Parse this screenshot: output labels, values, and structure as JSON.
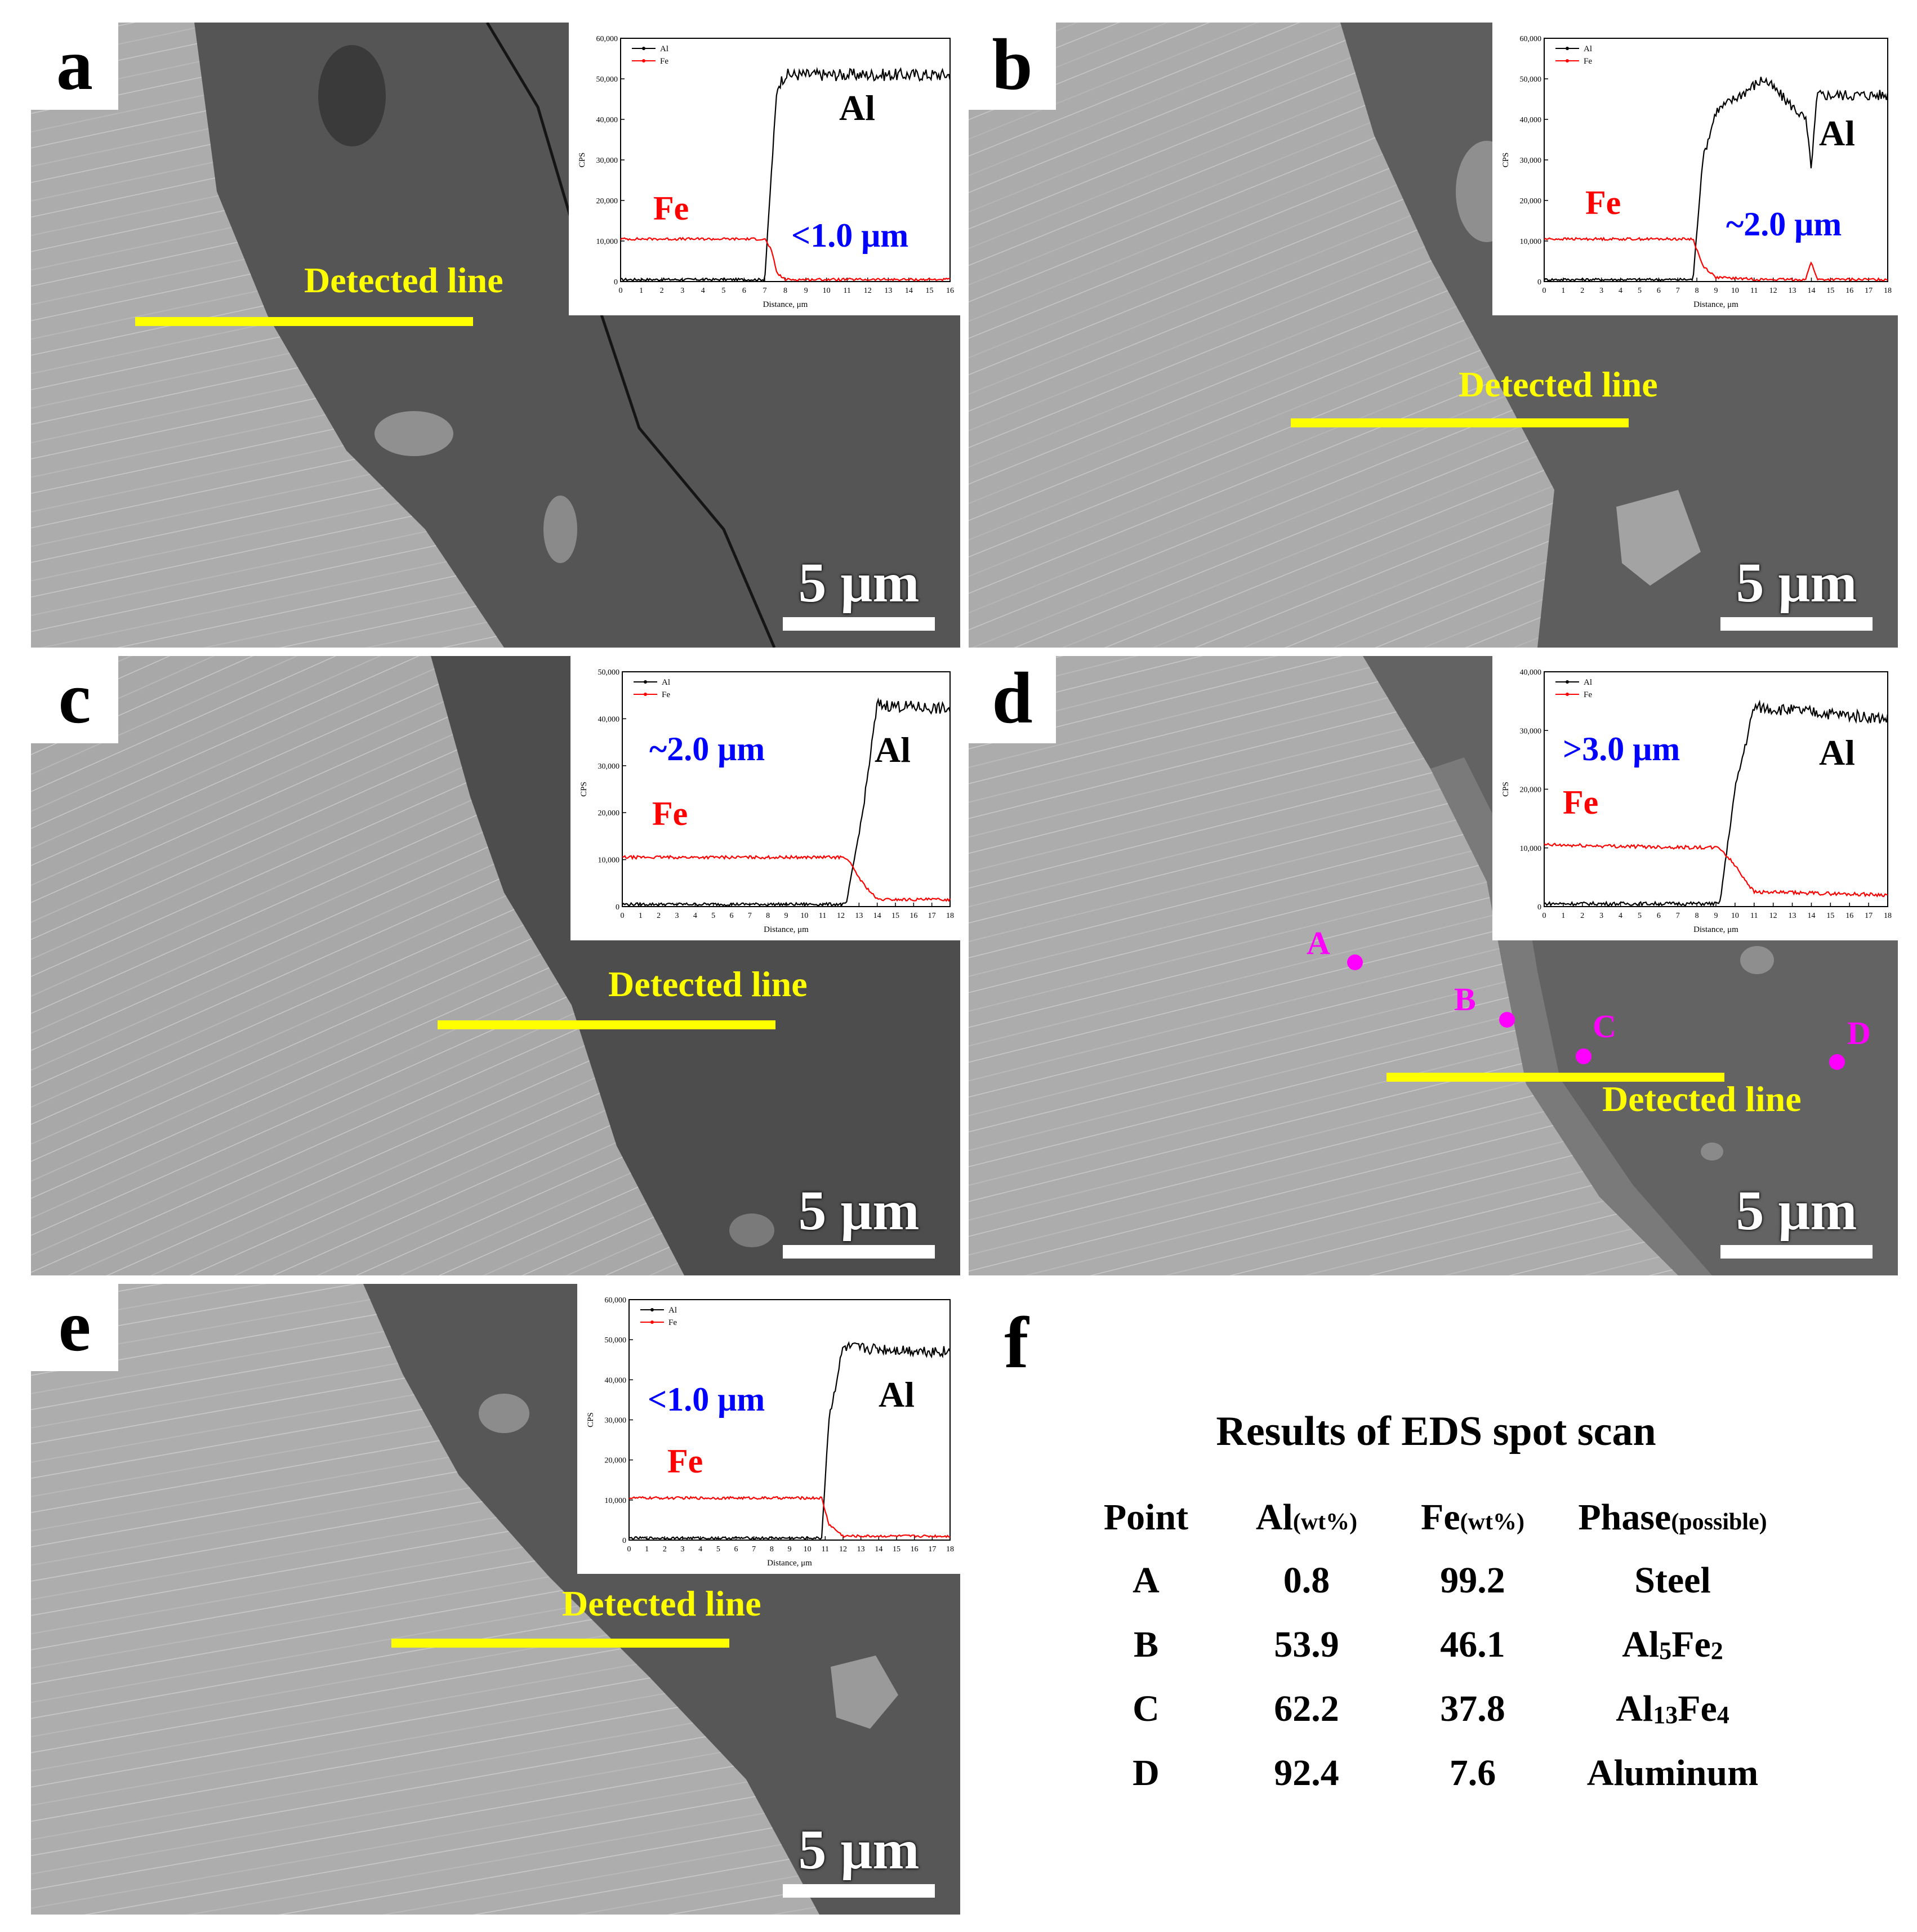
{
  "figure": {
    "scale_bar_text": "5 μm",
    "detected_line_text": "Detected line",
    "panels": [
      {
        "label": "a",
        "thickness": "<1.0 μm",
        "fe_label": "Fe",
        "al_label": "Al",
        "chart": {
          "legend": [
            "Al",
            "Fe"
          ],
          "y_ticks": [
            "60,000",
            "50,000",
            "40,000",
            "30,000",
            "20,000",
            "10,000",
            "0"
          ],
          "x_ticks": [
            "0",
            "1",
            "2",
            "3",
            "4",
            "5",
            "6",
            "7",
            "8",
            "9",
            "10",
            "11",
            "12",
            "13",
            "14",
            "15",
            "16"
          ],
          "x_label": "Distance, μm",
          "y_label": "CPS"
        }
      },
      {
        "label": "b",
        "thickness": "~2.0 μm",
        "fe_label": "Fe",
        "al_label": "Al",
        "chart": {
          "legend": [
            "Al",
            "Fe"
          ],
          "y_ticks": [
            "60,000",
            "50,000",
            "40,000",
            "30,000",
            "20,000",
            "10,000",
            "0"
          ],
          "x_ticks": [
            "0",
            "1",
            "2",
            "3",
            "4",
            "5",
            "6",
            "7",
            "8",
            "9",
            "10",
            "11",
            "12",
            "13",
            "14",
            "15",
            "16",
            "17",
            "18"
          ],
          "x_label": "Distance, μm",
          "y_label": "CPS"
        }
      },
      {
        "label": "c",
        "thickness": "~2.0 μm",
        "fe_label": "Fe",
        "al_label": "Al",
        "chart": {
          "legend": [
            "Al",
            "Fe"
          ],
          "y_ticks": [
            "50,000",
            "40,000",
            "30,000",
            "20,000",
            "10,000",
            "0"
          ],
          "x_ticks": [
            "0",
            "1",
            "2",
            "3",
            "4",
            "5",
            "6",
            "7",
            "8",
            "9",
            "10",
            "11",
            "12",
            "13",
            "14",
            "15",
            "16",
            "17",
            "18"
          ],
          "x_label": "Distance, μm",
          "y_label": "CPS"
        }
      },
      {
        "label": "d",
        "thickness": ">3.0 μm",
        "fe_label": "Fe",
        "al_label": "Al",
        "points": [
          "A",
          "B",
          "C",
          "D"
        ],
        "chart": {
          "legend": [
            "Al",
            "Fe"
          ],
          "y_ticks": [
            "40,000",
            "30,000",
            "20,000",
            "10,000",
            "0"
          ],
          "x_ticks": [
            "0",
            "1",
            "2",
            "3",
            "4",
            "5",
            "6",
            "7",
            "8",
            "9",
            "10",
            "11",
            "12",
            "13",
            "14",
            "15",
            "16",
            "17",
            "18"
          ],
          "x_label": "Distance, μm",
          "y_label": "CPS"
        }
      },
      {
        "label": "e",
        "thickness": "<1.0 μm",
        "fe_label": "Fe",
        "al_label": "Al",
        "chart": {
          "legend": [
            "Al",
            "Fe"
          ],
          "y_ticks": [
            "60,000",
            "50,000",
            "40,000",
            "30,000",
            "20,000",
            "10,000",
            "0"
          ],
          "x_ticks": [
            "0",
            "1",
            "2",
            "3",
            "4",
            "5",
            "6",
            "7",
            "8",
            "9",
            "10",
            "11",
            "12",
            "13",
            "14",
            "15",
            "16",
            "17",
            "18"
          ],
          "x_label": "Distance, μm",
          "y_label": "CPS"
        }
      }
    ],
    "panel_f": {
      "label": "f",
      "caption": "Results of EDS spot scan",
      "headers": {
        "point": "Point",
        "al": "Al",
        "al_unit": "(wt%)",
        "fe": "Fe",
        "fe_unit": "(wt%)",
        "phase": "Phase",
        "phase_note": "(possible)"
      },
      "rows": [
        {
          "point": "A",
          "al": "0.8",
          "fe": "99.2",
          "phase_parts": [
            [
              "Steel",
              ""
            ]
          ]
        },
        {
          "point": "B",
          "al": "53.9",
          "fe": "46.1",
          "phase_parts": [
            [
              "Al",
              "5"
            ],
            [
              "Fe",
              "2"
            ]
          ]
        },
        {
          "point": "C",
          "al": "62.2",
          "fe": "37.8",
          "phase_parts": [
            [
              "Al",
              "13"
            ],
            [
              "Fe",
              "4"
            ]
          ]
        },
        {
          "point": "D",
          "al": "92.4",
          "fe": "7.6",
          "phase_parts": [
            [
              "Aluminum",
              ""
            ]
          ]
        }
      ]
    }
  },
  "chart_data": [
    {
      "type": "line",
      "panel": "a",
      "x": [
        0,
        7.0,
        7.3,
        7.6,
        8.0,
        16
      ],
      "series": [
        {
          "name": "Al",
          "values": [
            500,
            500,
            25000,
            48000,
            51000,
            51000
          ]
        },
        {
          "name": "Fe",
          "values": [
            10500,
            10500,
            8000,
            2000,
            500,
            500
          ]
        }
      ],
      "xlim": [
        0,
        16
      ],
      "ylim": [
        0,
        60000
      ],
      "xlabel": "Distance, μm",
      "ylabel": "CPS"
    },
    {
      "type": "line",
      "panel": "b",
      "x": [
        0,
        7.8,
        8.3,
        9,
        11.5,
        13.7,
        14,
        14.3,
        18
      ],
      "series": [
        {
          "name": "Al",
          "values": [
            500,
            500,
            30000,
            42000,
            50000,
            40000,
            28000,
            46000,
            46000
          ]
        },
        {
          "name": "Fe",
          "values": [
            10500,
            10500,
            4000,
            1000,
            500,
            500,
            5000,
            500,
            500
          ]
        }
      ],
      "xlim": [
        0,
        18
      ],
      "ylim": [
        0,
        60000
      ],
      "xlabel": "Distance, μm",
      "ylabel": "CPS"
    },
    {
      "type": "line",
      "panel": "c",
      "x": [
        0,
        12.3,
        13.2,
        14,
        18
      ],
      "series": [
        {
          "name": "Al",
          "values": [
            500,
            500,
            20000,
            43000,
            42000
          ]
        },
        {
          "name": "Fe",
          "values": [
            10500,
            10500,
            5000,
            1500,
            1500
          ]
        }
      ],
      "xlim": [
        0,
        18
      ],
      "ylim": [
        0,
        50000
      ],
      "xlabel": "Distance, μm",
      "ylabel": "CPS"
    },
    {
      "type": "line",
      "panel": "d",
      "x": [
        0,
        9.2,
        10,
        11,
        18
      ],
      "series": [
        {
          "name": "Al",
          "values": [
            500,
            500,
            20000,
            34000,
            32000
          ]
        },
        {
          "name": "Fe",
          "values": [
            10500,
            10000,
            7000,
            2500,
            2000
          ]
        }
      ],
      "xlim": [
        0,
        18
      ],
      "ylim": [
        0,
        40000
      ],
      "xlabel": "Distance, μm",
      "ylabel": "CPS"
    },
    {
      "type": "line",
      "panel": "e",
      "x": [
        0,
        10.8,
        11.2,
        12,
        18
      ],
      "series": [
        {
          "name": "Al",
          "values": [
            500,
            500,
            30000,
            48000,
            47000
          ]
        },
        {
          "name": "Fe",
          "values": [
            10500,
            10500,
            4000,
            1000,
            1000
          ]
        }
      ],
      "xlim": [
        0,
        18
      ],
      "ylim": [
        0,
        60000
      ],
      "xlabel": "Distance, μm",
      "ylabel": "CPS"
    }
  ]
}
